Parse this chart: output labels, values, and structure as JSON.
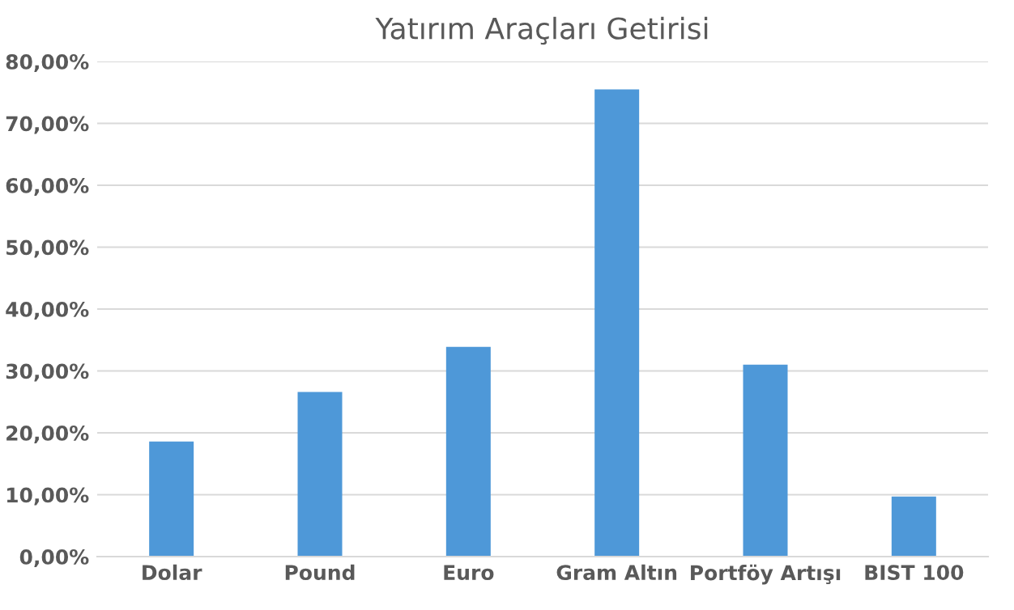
{
  "chart_data": {
    "type": "bar",
    "title": "Yatırım Araçları Getirisi",
    "categories": [
      "Dolar",
      "Pound",
      "Euro",
      "Gram Altın",
      "Portföy Artışı",
      "BIST 100"
    ],
    "values": [
      18.6,
      26.6,
      33.9,
      75.5,
      31.0,
      9.7
    ],
    "color": "#4e98d8",
    "ylim": [
      0,
      80
    ],
    "yticks": [
      {
        "value": 0,
        "label": "0,00%"
      },
      {
        "value": 10,
        "label": "10,00%"
      },
      {
        "value": 20,
        "label": "20,00%"
      },
      {
        "value": 30,
        "label": "30,00%"
      },
      {
        "value": 40,
        "label": "40,00%"
      },
      {
        "value": 50,
        "label": "50,00%"
      },
      {
        "value": 60,
        "label": "60,00%"
      },
      {
        "value": 70,
        "label": "70,00%"
      },
      {
        "value": 80,
        "label": "80,00%"
      }
    ],
    "grid": "y",
    "legend": false
  }
}
